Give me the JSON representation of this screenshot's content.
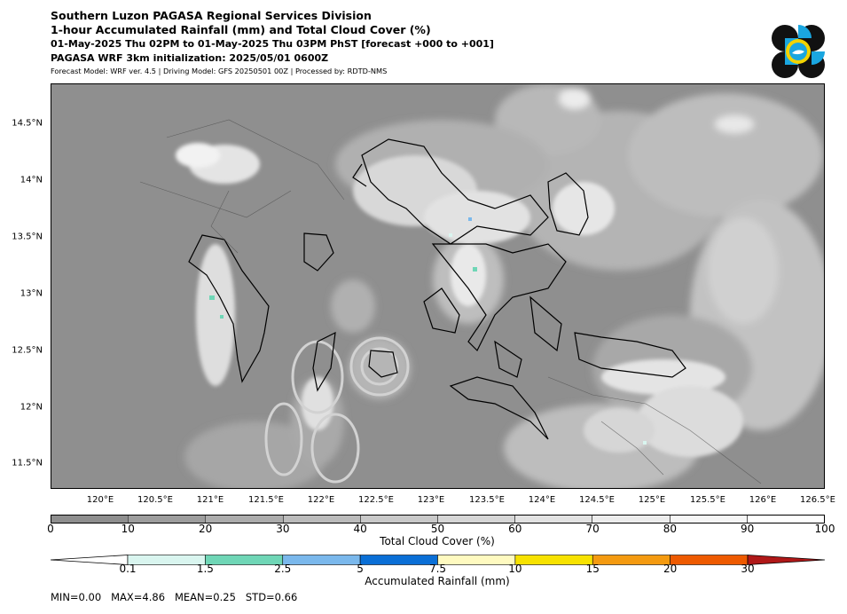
{
  "header": {
    "title": "Southern Luzon PAGASA Regional Services Division",
    "subtitle": "1-hour Accumulated Rainfall (mm) and Total Cloud Cover (%)",
    "period": "01-May-2025 Thu 02PM to 01-May-2025 Thu 03PM PhST [forecast +000 to +001]",
    "init": "PAGASA WRF 3km initialization: 2025/05/01 0600Z",
    "model_info": "Forecast Model: WRF ver. 4.5 | Driving Model: GFS 20250501 00Z | Processed by: RDTD-NMS"
  },
  "logo": {
    "name": "pagasa-logo",
    "colors": [
      "#111111",
      "#1aa6e0",
      "#f2d300"
    ]
  },
  "map": {
    "latitude_labels": [
      "14.5°N",
      "14°N",
      "13.5°N",
      "13°N",
      "12.5°N",
      "12°N",
      "11.5°N"
    ],
    "longitude_labels": [
      "120°E",
      "120.5°E",
      "121°E",
      "121.5°E",
      "122°E",
      "122.5°E",
      "123°E",
      "123.5°E",
      "124°E",
      "124.5°E",
      "125°E",
      "125.5°E",
      "126°E",
      "126.5°E"
    ]
  },
  "cloud_colorbar": {
    "label": "Total Cloud Cover (%)",
    "ticks": [
      "0",
      "10",
      "20",
      "30",
      "40",
      "50",
      "60",
      "70",
      "80",
      "90",
      "100"
    ],
    "colors": [
      "#8e8e8e",
      "#9d9d9d",
      "#acacac",
      "#bbbbbb",
      "#c9c9c9",
      "#d6d6d6",
      "#e2e2e2",
      "#ececec",
      "#f5f5f5",
      "#fdfdfd"
    ]
  },
  "rain_colorbar": {
    "label": "Accumulated Rainfall (mm)",
    "ticks": [
      "0.1",
      "1.5",
      "2.5",
      "5",
      "7.5",
      "10",
      "15",
      "20",
      "30"
    ],
    "under_color": "#ffffff",
    "colors": [
      "#d9f5ef",
      "#6fd6b6",
      "#7ab8ec",
      "#0a6fd6",
      "#fffac0",
      "#f7e200",
      "#f49a10",
      "#ee5a00"
    ],
    "over_color": "#b01818"
  },
  "stats": "MIN=0.00   MAX=4.86   MEAN=0.25   STD=0.66"
}
